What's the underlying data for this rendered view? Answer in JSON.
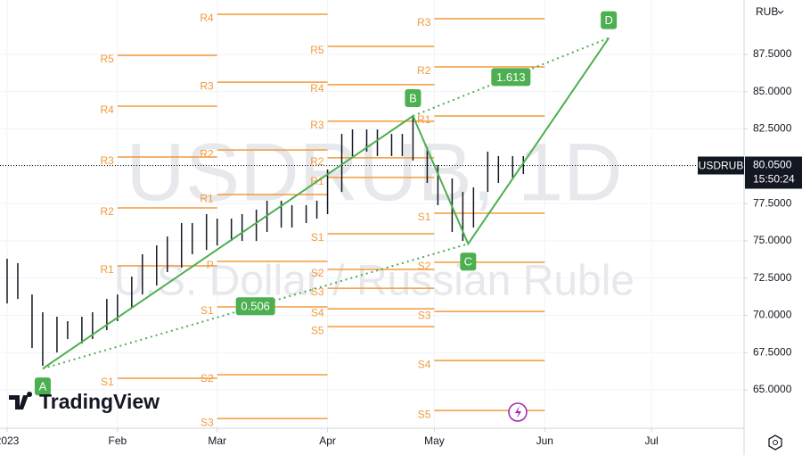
{
  "chart_data": {
    "type": "ohlc",
    "watermark": "USDRUB, 1D",
    "description": "U.S. Dollar / Russian Ruble",
    "currency": "RUB",
    "brand": "TradingView",
    "xlim": [
      -2,
      207
    ],
    "xticks": [
      {
        "value": 0,
        "label": "2023"
      },
      {
        "value": 31,
        "label": "Feb"
      },
      {
        "value": 59,
        "label": "Mar"
      },
      {
        "value": 90,
        "label": "Apr"
      },
      {
        "value": 120,
        "label": "May"
      },
      {
        "value": 151,
        "label": "Jun"
      },
      {
        "value": 181,
        "label": "Jul"
      }
    ],
    "ylim": [
      62.43,
      91.15
    ],
    "yticks": [
      {
        "value": 65,
        "label": "65.0000"
      },
      {
        "value": 67.5,
        "label": "67.5000"
      },
      {
        "value": 70,
        "label": "70.0000"
      },
      {
        "value": 72.5,
        "label": "72.5000"
      },
      {
        "value": 75,
        "label": "75.0000"
      },
      {
        "value": 77.5,
        "label": "77.5000"
      },
      {
        "value": 80,
        "label": "80.0000"
      },
      {
        "value": 82.5,
        "label": "82.5000"
      },
      {
        "value": 85,
        "label": "85.0000"
      },
      {
        "value": 87.5,
        "label": "87.5000"
      }
    ],
    "grid": true,
    "bars": {
      "color": "#131722",
      "x": [
        0,
        3,
        7,
        10,
        14,
        17,
        21,
        24,
        28,
        31,
        35,
        38,
        42,
        45,
        49,
        52,
        56,
        59,
        63,
        66,
        70,
        73,
        77,
        80,
        84,
        87,
        90,
        94,
        97,
        101,
        104,
        108,
        111,
        114,
        118,
        121,
        125,
        128,
        131,
        135,
        138,
        142,
        145
      ],
      "high": [
        73.8,
        73.5,
        71.4,
        70.21,
        69.91,
        69.61,
        69.91,
        70.21,
        71.1,
        71.4,
        72.6,
        74.1,
        74.69,
        75.29,
        76.19,
        76.19,
        76.79,
        76.49,
        76.49,
        76.79,
        77.09,
        77.69,
        77.69,
        77.39,
        77.39,
        77.69,
        79.78,
        82.17,
        82.47,
        82.47,
        82.47,
        82.17,
        82.17,
        83.37,
        81.28,
        80.08,
        79.18,
        78.28,
        78.58,
        80.98,
        80.68,
        80.68,
        80.68
      ],
      "low": [
        70.8,
        71.1,
        67.81,
        66.62,
        67.51,
        68.41,
        68.11,
        68.41,
        69.01,
        69.61,
        70.51,
        71.4,
        72.0,
        72.9,
        73.2,
        74.1,
        74.39,
        74.69,
        74.99,
        74.99,
        74.99,
        75.59,
        75.89,
        75.89,
        76.19,
        76.49,
        76.79,
        78.28,
        80.68,
        80.98,
        80.68,
        80.68,
        80.68,
        80.38,
        78.88,
        77.39,
        75.59,
        74.99,
        75.89,
        78.28,
        78.88,
        79.18,
        79.48
      ]
    },
    "last_price": {
      "symbol": "USDRUB",
      "value": 80.05,
      "label": "80.0500",
      "countdown": "15:50:24"
    },
    "pattern": {
      "color": "#4caf50",
      "labels": [
        "A",
        "B",
        "C",
        "D"
      ],
      "x": [
        10,
        114,
        129.5,
        169
      ],
      "y": [
        66.43,
        83.37,
        74.8,
        88.6
      ],
      "ratios": [
        0.506,
        1.613
      ]
    },
    "pivots": {
      "color": "#f29a3b",
      "levels": [
        {
          "label": "R5",
          "value": 87.44,
          "from": 31,
          "to": 59
        },
        {
          "label": "R4",
          "value": 84.03,
          "from": 31,
          "to": 59
        },
        {
          "label": "R3",
          "value": 80.62,
          "from": 31,
          "to": 59
        },
        {
          "label": "R2",
          "value": 77.21,
          "from": 31,
          "to": 59
        },
        {
          "label": "R1",
          "value": 73.32,
          "from": 31,
          "to": 59
        },
        {
          "label": "S1",
          "value": 65.78,
          "from": 31,
          "to": 59
        },
        {
          "label": "R4",
          "value": 90.19,
          "from": 59,
          "to": 90
        },
        {
          "label": "R3",
          "value": 85.64,
          "from": 59,
          "to": 90
        },
        {
          "label": "R2",
          "value": 81.09,
          "from": 59,
          "to": 90
        },
        {
          "label": "R1",
          "value": 78.1,
          "from": 59,
          "to": 90
        },
        {
          "label": "P",
          "value": 73.62,
          "from": 59,
          "to": 90
        },
        {
          "label": "S1",
          "value": 70.57,
          "from": 59,
          "to": 90
        },
        {
          "label": "S2",
          "value": 66.02,
          "from": 59,
          "to": 90
        },
        {
          "label": "S3",
          "value": 63.08,
          "from": 59,
          "to": 90
        },
        {
          "label": "R5",
          "value": 88.04,
          "from": 90,
          "to": 120
        },
        {
          "label": "R4",
          "value": 85.47,
          "from": 90,
          "to": 120
        },
        {
          "label": "R3",
          "value": 83.02,
          "from": 90,
          "to": 120
        },
        {
          "label": "R2",
          "value": 80.57,
          "from": 90,
          "to": 120
        },
        {
          "label": "R1",
          "value": 79.25,
          "from": 90,
          "to": 120
        },
        {
          "label": "S1",
          "value": 75.47,
          "from": 90,
          "to": 120
        },
        {
          "label": "S2",
          "value": 73.08,
          "from": 90,
          "to": 120
        },
        {
          "label": "S3",
          "value": 71.82,
          "from": 90,
          "to": 120
        },
        {
          "label": "S4",
          "value": 70.44,
          "from": 90,
          "to": 120
        },
        {
          "label": "S5",
          "value": 69.24,
          "from": 90,
          "to": 120
        },
        {
          "label": "R3",
          "value": 89.89,
          "from": 120,
          "to": 151
        },
        {
          "label": "R2",
          "value": 86.66,
          "from": 120,
          "to": 151
        },
        {
          "label": "R1",
          "value": 83.37,
          "from": 120,
          "to": 151
        },
        {
          "label": "S1",
          "value": 76.85,
          "from": 120,
          "to": 151
        },
        {
          "label": "S2",
          "value": 73.56,
          "from": 120,
          "to": 151
        },
        {
          "label": "S3",
          "value": 70.26,
          "from": 120,
          "to": 151
        },
        {
          "label": "S4",
          "value": 66.97,
          "from": 120,
          "to": 151
        },
        {
          "label": "S5",
          "value": 63.62,
          "from": 120,
          "to": 151
        }
      ]
    }
  }
}
